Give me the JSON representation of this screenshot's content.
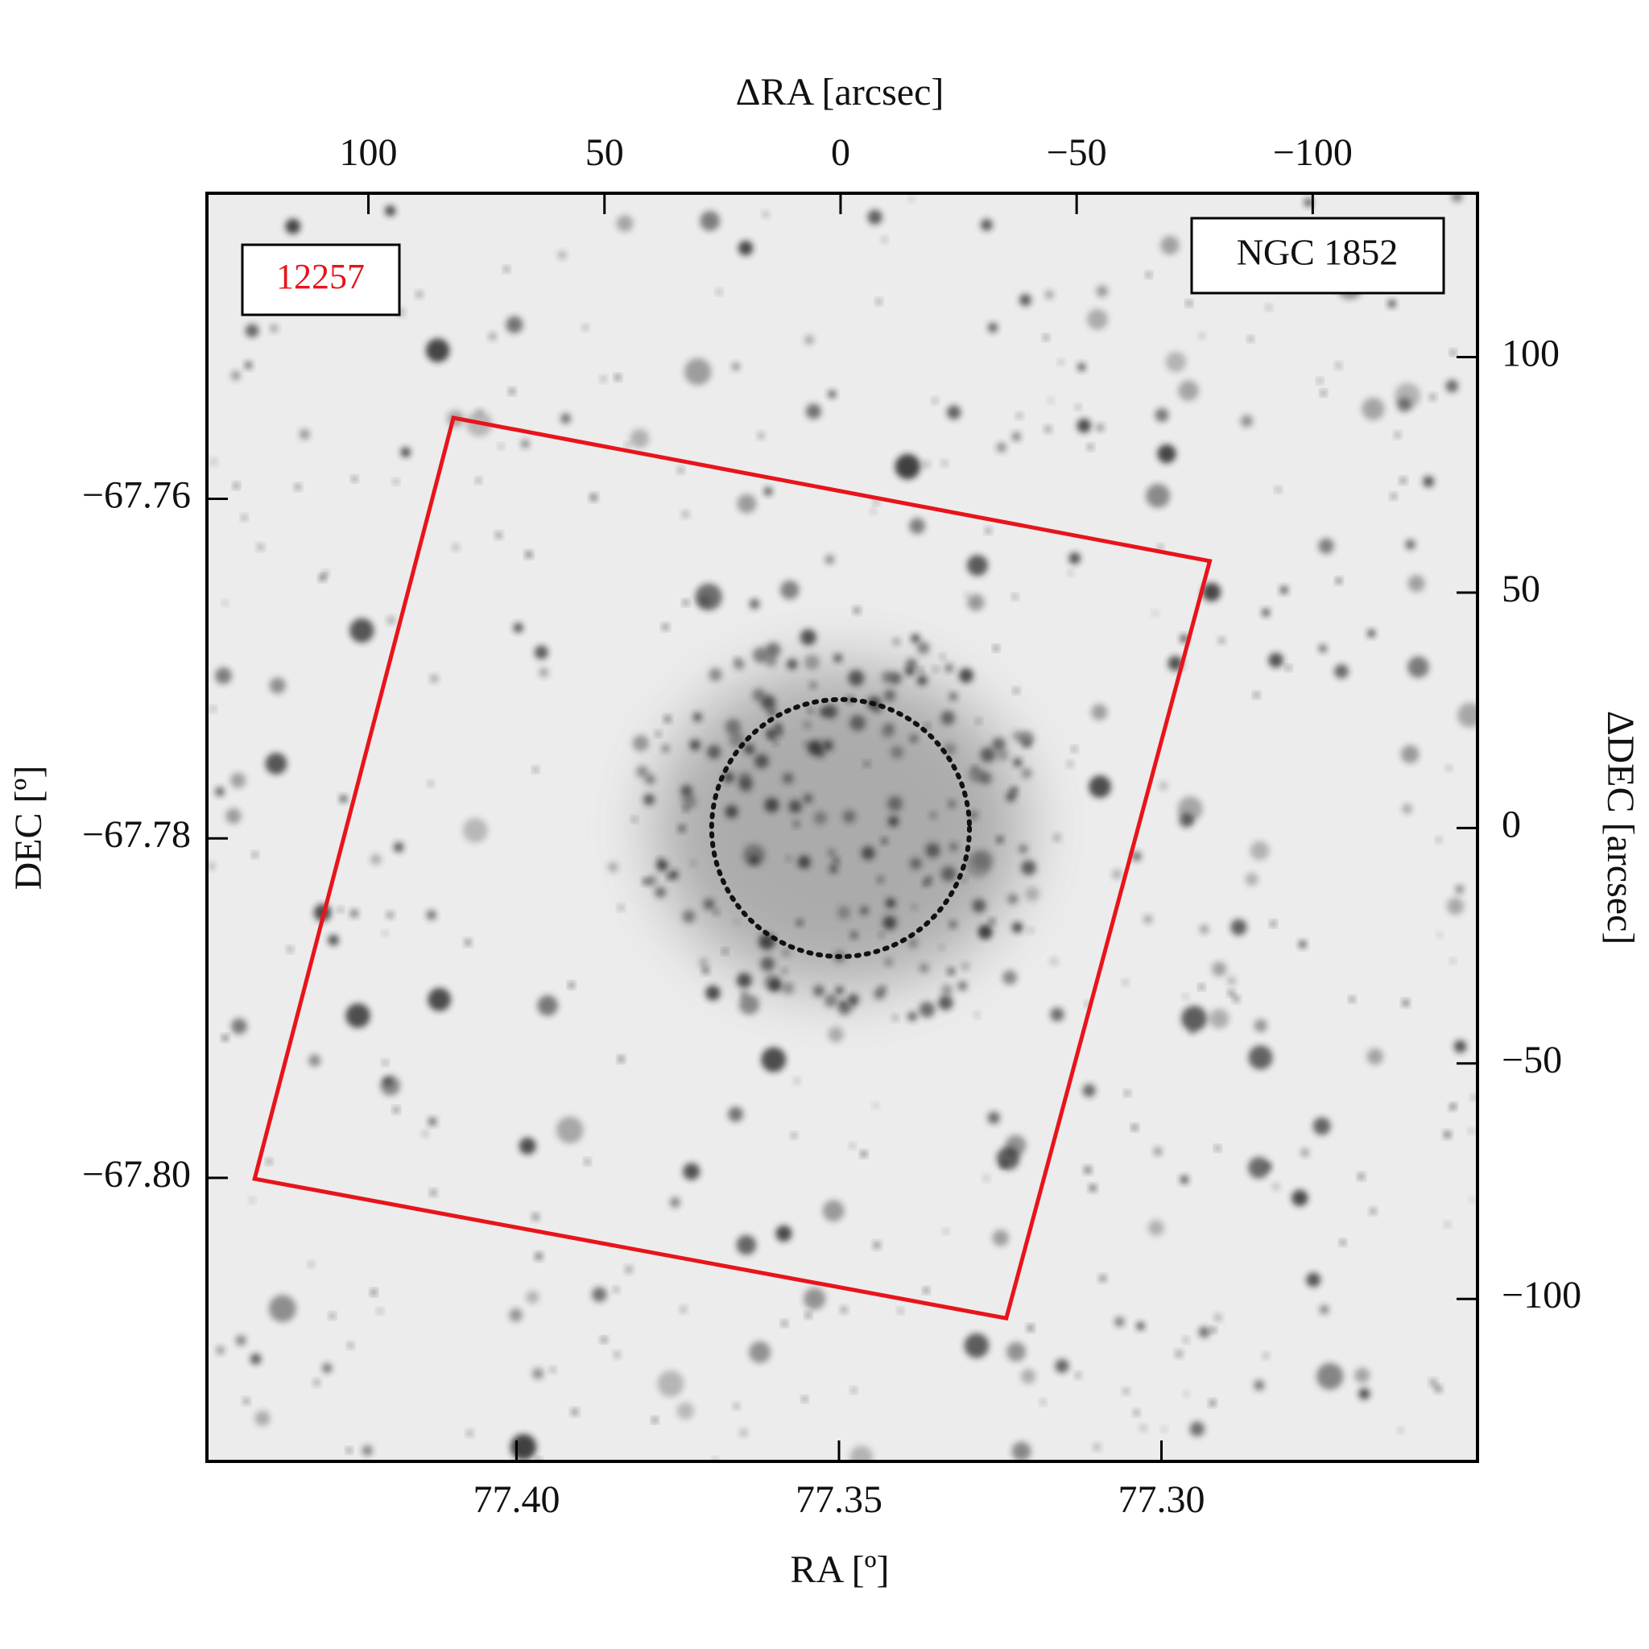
{
  "chart_data": {
    "type": "sky-image",
    "object_label": "NGC 1852",
    "xlabel": "RA [º]",
    "ylabel": "DEC [º]",
    "x2label": "ΔRA [arcsec]",
    "y2label": "ΔDEC [arcsec]",
    "xlim": [
      77.448,
      77.251
    ],
    "ylim": [
      -67.8167,
      -67.742
    ],
    "xticks": [
      {
        "value": 77.4,
        "label": "77.40"
      },
      77.35,
      {
        "value": 77.3,
        "label": "77.30"
      }
    ],
    "yticks": [
      {
        "value": -67.76,
        "label": "−67.76"
      },
      {
        "value": -67.78,
        "label": "−67.78"
      },
      {
        "value": -67.8,
        "label": "−67.80"
      }
    ],
    "x2lim": [
      134.2,
      -134.9
    ],
    "y2lim": [
      -134.5,
      134.8
    ],
    "x2ticks": [
      100,
      50,
      0,
      {
        "value": -50,
        "label": "−50"
      },
      {
        "value": -100,
        "label": "−100"
      }
    ],
    "y2ticks": [
      100,
      50,
      0,
      {
        "value": -50,
        "label": "−50"
      },
      {
        "value": -100,
        "label": "−100"
      }
    ],
    "footprint": {
      "label": "12257",
      "color": "#e8141b",
      "dra": [
        82.0,
        -78.2,
        -35.1,
        124.1
      ],
      "ddec": [
        87.1,
        56.7,
        -104.1,
        -74.5
      ]
    },
    "circle": {
      "center_dra": 0,
      "center_ddec": 0,
      "radius": 27.3,
      "color": "#111"
    }
  }
}
